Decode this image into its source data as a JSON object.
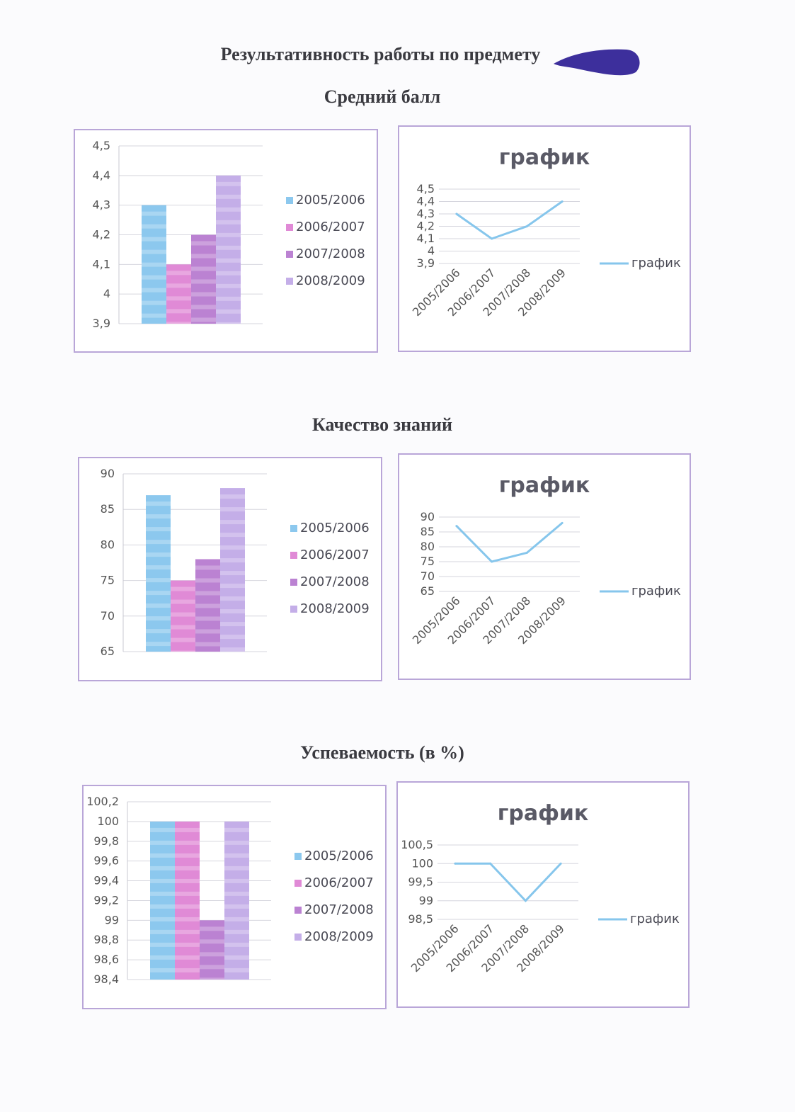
{
  "page": {
    "title": "Результативность работы по предмету",
    "sections": [
      "Средний балл",
      "Качество знаний",
      "Успеваемость (в %)"
    ]
  },
  "colors": {
    "2005/2006": "#8cc8ee",
    "2006/2007": "#e08ad6",
    "2007/2008": "#bb82d2",
    "2008/2009": "#c4aee8",
    "line": "#86c6ec",
    "frame": "#b9a6d8"
  },
  "chart_data": [
    {
      "type": "bar",
      "section": "Средний балл",
      "series": [
        {
          "name": "2005/2006",
          "values": [
            4.3
          ]
        },
        {
          "name": "2006/2007",
          "values": [
            4.1
          ]
        },
        {
          "name": "2007/2008",
          "values": [
            4.2
          ]
        },
        {
          "name": "2008/2009",
          "values": [
            4.4
          ]
        }
      ],
      "ylim": [
        3.9,
        4.5
      ],
      "yticks": [
        "3,9",
        "4",
        "4,1",
        "4,2",
        "4,3",
        "4,4",
        "4,5"
      ],
      "legend": "right",
      "grid": true
    },
    {
      "type": "line",
      "section": "Средний балл",
      "title": "график",
      "categories": [
        "2005/2006",
        "2006/2007",
        "2007/2008",
        "2008/2009"
      ],
      "series": [
        {
          "name": "график",
          "values": [
            4.3,
            4.1,
            4.2,
            4.4
          ]
        }
      ],
      "ylim": [
        3.9,
        4.5
      ],
      "yticks": [
        "3,9",
        "4",
        "4,1",
        "4,2",
        "4,3",
        "4,4",
        "4,5"
      ],
      "legend": "right",
      "grid": true
    },
    {
      "type": "bar",
      "section": "Качество знаний",
      "series": [
        {
          "name": "2005/2006",
          "values": [
            87
          ]
        },
        {
          "name": "2006/2007",
          "values": [
            75
          ]
        },
        {
          "name": "2007/2008",
          "values": [
            78
          ]
        },
        {
          "name": "2008/2009",
          "values": [
            88
          ]
        }
      ],
      "ylim": [
        65,
        90
      ],
      "yticks": [
        "65",
        "70",
        "75",
        "80",
        "85",
        "90"
      ],
      "legend": "right",
      "grid": true
    },
    {
      "type": "line",
      "section": "Качество знаний",
      "title": "график",
      "categories": [
        "2005/2006",
        "2006/2007",
        "2007/2008",
        "2008/2009"
      ],
      "series": [
        {
          "name": "график",
          "values": [
            87,
            75,
            78,
            88
          ]
        }
      ],
      "ylim": [
        65,
        90
      ],
      "yticks": [
        "65",
        "70",
        "75",
        "80",
        "85",
        "90"
      ],
      "legend": "right",
      "grid": true
    },
    {
      "type": "bar",
      "section": "Успеваемость (в %)",
      "series": [
        {
          "name": "2005/2006",
          "values": [
            100
          ]
        },
        {
          "name": "2006/2007",
          "values": [
            100
          ]
        },
        {
          "name": "2007/2008",
          "values": [
            99
          ]
        },
        {
          "name": "2008/2009",
          "values": [
            100
          ]
        }
      ],
      "ylim": [
        98.4,
        100.2
      ],
      "yticks": [
        "98,4",
        "98,6",
        "98,8",
        "99",
        "99,2",
        "99,4",
        "99,6",
        "99,8",
        "100",
        "100,2"
      ],
      "legend": "right",
      "grid": true
    },
    {
      "type": "line",
      "section": "Успеваемость (в %)",
      "title": "график",
      "categories": [
        "2005/2006",
        "2006/2007",
        "2007/2008",
        "2008/2009"
      ],
      "series": [
        {
          "name": "график",
          "values": [
            100,
            100,
            99,
            100
          ]
        }
      ],
      "ylim": [
        98.5,
        100.5
      ],
      "yticks": [
        "98,5",
        "99",
        "99,5",
        "100",
        "100,5"
      ],
      "legend": "right",
      "grid": true
    }
  ]
}
